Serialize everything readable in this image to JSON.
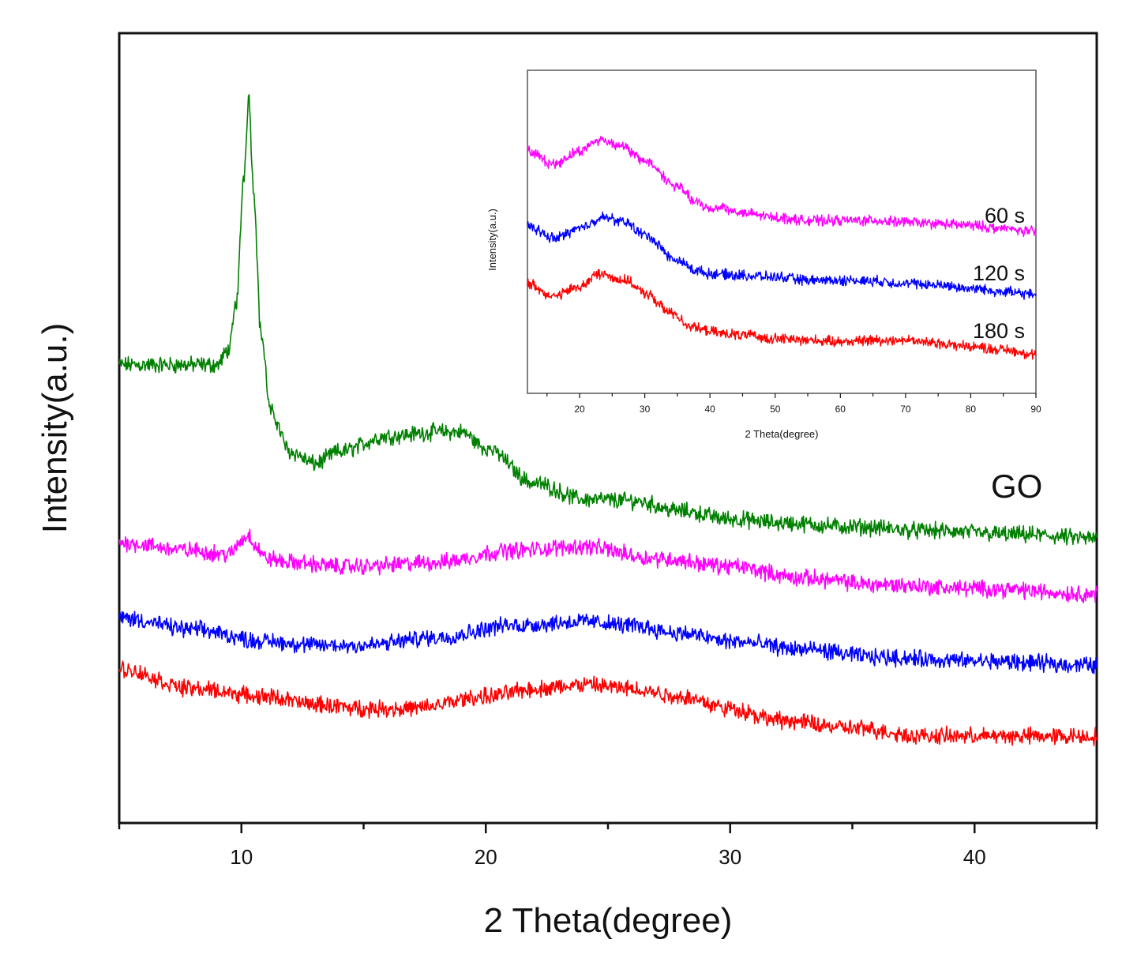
{
  "chart_data": [
    {
      "type": "line",
      "xlabel": "2 Theta(degree)",
      "ylabel": "Intensity(a.u.)",
      "xlim": [
        5,
        45
      ],
      "ylim": [
        0,
        100
      ],
      "xticks": [
        10,
        20,
        30,
        40
      ],
      "ytick_labels": false,
      "grid": false,
      "series": [
        {
          "name": "GO",
          "label": "GO",
          "color": "#008000",
          "x": [
            5,
            8,
            9,
            9.5,
            9.8,
            10.1,
            10.3,
            10.5,
            10.8,
            11.2,
            12,
            13,
            14,
            16,
            18,
            19,
            20,
            22,
            24,
            26,
            28,
            30,
            32,
            35,
            38,
            42,
            45
          ],
          "y": [
            58,
            58,
            58,
            60,
            66,
            82,
            92,
            80,
            62,
            52,
            47,
            45.5,
            47,
            49,
            49.5,
            49.5,
            47.5,
            43,
            41,
            40.8,
            39.5,
            38.5,
            38,
            37.5,
            37,
            36.5,
            36
          ]
        },
        {
          "name": "60 s",
          "label": "",
          "color": "#ff00ff",
          "x": [
            5,
            8,
            9.5,
            10.1,
            10.3,
            10.6,
            11,
            12,
            14,
            15,
            18,
            21,
            24,
            27,
            30,
            33,
            36,
            40,
            45
          ],
          "y": [
            35.5,
            34.5,
            34,
            36,
            36.5,
            35,
            33.5,
            33,
            32.5,
            32.5,
            33,
            34.5,
            35,
            33.5,
            32.5,
            31,
            30.2,
            29.7,
            29
          ]
        },
        {
          "name": "120 s",
          "label": "",
          "color": "#0000ff",
          "x": [
            5,
            8,
            11,
            13,
            15,
            18,
            21,
            24,
            26,
            28,
            30,
            33,
            36,
            40,
            45
          ],
          "y": [
            26,
            24.5,
            23,
            22.5,
            22.5,
            23.5,
            25,
            25.5,
            25,
            24,
            23,
            22,
            21,
            20.5,
            20
          ]
        },
        {
          "name": "180 s",
          "label": "",
          "color": "#ff0000",
          "x": [
            5,
            8,
            11,
            13,
            15,
            17,
            20,
            22,
            24,
            26,
            28,
            30,
            32,
            35,
            38,
            42,
            45
          ],
          "y": [
            19.5,
            17,
            16,
            15,
            14.5,
            14.5,
            16,
            17,
            17.5,
            17,
            16,
            14.5,
            13,
            12,
            11,
            11,
            11
          ]
        }
      ]
    },
    {
      "type": "line",
      "xlabel": "2 Theta(degree)",
      "ylabel": "Intensity(a.u.)",
      "xlim": [
        12,
        90
      ],
      "ylim": [
        0,
        100
      ],
      "xticks": [
        20,
        30,
        40,
        50,
        60,
        70,
        80,
        90
      ],
      "ytick_labels": false,
      "grid": false,
      "series": [
        {
          "name": "60 s",
          "label": "60 s",
          "color": "#ff00ff",
          "x": [
            12,
            16,
            20,
            23,
            26,
            30,
            35,
            38,
            40,
            42,
            43,
            46,
            50,
            55,
            60,
            65,
            70,
            75,
            80,
            85,
            90
          ],
          "y": [
            75,
            71,
            75,
            78.5,
            77,
            72,
            64,
            59,
            57,
            58,
            56.5,
            55.5,
            54.5,
            53.5,
            53.5,
            53.5,
            53,
            52.5,
            52,
            51,
            50
          ]
        },
        {
          "name": "120 s",
          "label": "120 s",
          "color": "#0000ff",
          "x": [
            12,
            16,
            20,
            23.5,
            27,
            30,
            35,
            38,
            40,
            45,
            50,
            55,
            60,
            65,
            70,
            75,
            80,
            85,
            90
          ],
          "y": [
            52,
            48,
            51,
            54.5,
            53,
            49,
            41,
            38,
            37,
            36.5,
            36,
            35,
            35,
            34.8,
            34,
            33.5,
            32.5,
            31.5,
            30.5
          ]
        },
        {
          "name": "180 s",
          "label": "180 s",
          "color": "#ff0000",
          "x": [
            12,
            16,
            20,
            23,
            27,
            30,
            34,
            37,
            39,
            42,
            45,
            50,
            55,
            60,
            65,
            70,
            75,
            80,
            85,
            90
          ],
          "y": [
            34,
            30,
            33,
            37,
            35,
            31,
            25,
            21,
            19.5,
            18.5,
            18,
            17,
            16.5,
            16,
            16.5,
            16.5,
            15.5,
            14.5,
            13.5,
            12
          ]
        }
      ]
    }
  ]
}
